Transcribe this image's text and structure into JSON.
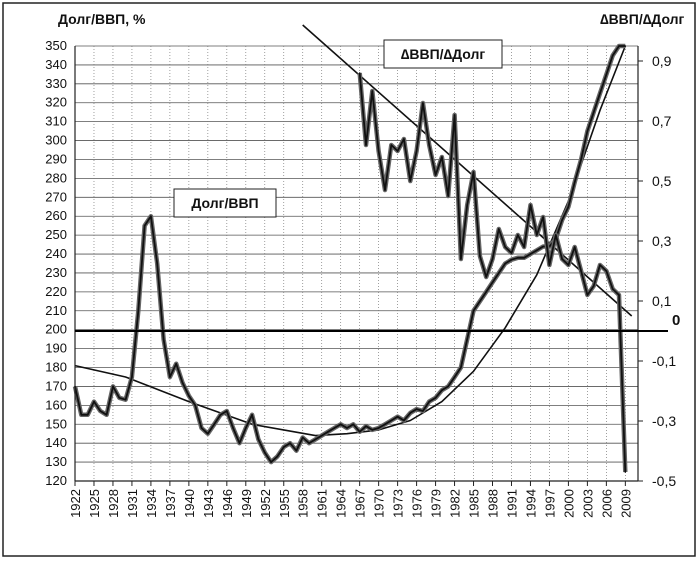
{
  "chart_data": {
    "type": "line",
    "left_axis_title": "Долг/ВВП, %",
    "right_axis_title": "∆ВВП/∆Долг",
    "left_ylim": [
      120,
      350
    ],
    "left_yticks": [
      120,
      130,
      140,
      150,
      160,
      170,
      180,
      190,
      200,
      210,
      220,
      230,
      240,
      250,
      260,
      270,
      280,
      290,
      300,
      310,
      320,
      330,
      340,
      350
    ],
    "right_ylim": [
      -0.5,
      0.95
    ],
    "right_yticks": [
      "0,9",
      "0,7",
      "0,5",
      "0,3",
      "0,1",
      "-0,1",
      "-0,3",
      "-0,5"
    ],
    "right_ytick_values": [
      0.9,
      0.7,
      0.5,
      0.3,
      0.1,
      -0.1,
      -0.3,
      -0.5
    ],
    "xlim": [
      1922,
      2011
    ],
    "xticks": [
      1922,
      1925,
      1928,
      1931,
      1934,
      1937,
      1940,
      1943,
      1946,
      1949,
      1952,
      1955,
      1958,
      1961,
      1964,
      1967,
      1970,
      1973,
      1976,
      1979,
      1982,
      1985,
      1988,
      1991,
      1994,
      1997,
      2000,
      2003,
      2006,
      2009
    ],
    "zero_line_label": "0",
    "grid": true,
    "annotations": [
      {
        "text": "Долг/ВВП",
        "series": "debt_gdp"
      },
      {
        "text": "∆ВВП/∆Долг",
        "series": "gdp_debt_ratio"
      }
    ],
    "series": [
      {
        "id": "debt_gdp",
        "axis": "left",
        "x": [
          1922,
          1923,
          1924,
          1925,
          1926,
          1927,
          1928,
          1929,
          1930,
          1931,
          1932,
          1933,
          1934,
          1935,
          1936,
          1937,
          1938,
          1939,
          1940,
          1941,
          1942,
          1943,
          1944,
          1945,
          1946,
          1947,
          1948,
          1949,
          1950,
          1951,
          1952,
          1953,
          1954,
          1955,
          1956,
          1957,
          1958,
          1959,
          1960,
          1961,
          1962,
          1963,
          1964,
          1965,
          1966,
          1967,
          1968,
          1969,
          1970,
          1971,
          1972,
          1973,
          1974,
          1975,
          1976,
          1977,
          1978,
          1979,
          1980,
          1981,
          1982,
          1983,
          1984,
          1985,
          1986,
          1987,
          1988,
          1989,
          1990,
          1991,
          1992,
          1993,
          1994,
          1995,
          1996,
          1997,
          1998,
          1999,
          2000,
          2001,
          2002,
          2003,
          2004,
          2005,
          2006,
          2007,
          2008,
          2009
        ],
        "values": [
          170,
          155,
          155,
          162,
          157,
          155,
          170,
          164,
          163,
          175,
          210,
          255,
          260,
          235,
          195,
          175,
          182,
          172,
          165,
          160,
          148,
          145,
          150,
          155,
          157,
          148,
          140,
          148,
          155,
          142,
          135,
          130,
          133,
          138,
          140,
          136,
          143,
          140,
          142,
          144,
          146,
          148,
          150,
          148,
          150,
          146,
          149,
          147,
          148,
          150,
          152,
          154,
          152,
          156,
          158,
          157,
          162,
          164,
          168,
          170,
          175,
          180,
          195,
          210,
          215,
          220,
          225,
          230,
          235,
          237,
          238,
          238,
          240,
          242,
          244,
          244,
          248,
          258,
          265,
          278,
          290,
          305,
          315,
          325,
          335,
          345,
          350,
          350
        ]
      },
      {
        "id": "gdp_debt_ratio",
        "axis": "right",
        "x": [
          1967,
          1968,
          1969,
          1970,
          1971,
          1972,
          1973,
          1974,
          1975,
          1976,
          1977,
          1978,
          1979,
          1980,
          1981,
          1982,
          1983,
          1984,
          1985,
          1986,
          1987,
          1988,
          1989,
          1990,
          1991,
          1992,
          1993,
          1994,
          1995,
          1996,
          1997,
          1998,
          1999,
          2000,
          2001,
          2002,
          2003,
          2004,
          2005,
          2006,
          2007,
          2008,
          2009
        ],
        "values": [
          0.86,
          0.62,
          0.8,
          0.6,
          0.47,
          0.62,
          0.6,
          0.64,
          0.5,
          0.6,
          0.76,
          0.62,
          0.52,
          0.58,
          0.45,
          0.72,
          0.24,
          0.42,
          0.53,
          0.25,
          0.18,
          0.24,
          0.34,
          0.28,
          0.26,
          0.32,
          0.28,
          0.42,
          0.32,
          0.38,
          0.22,
          0.32,
          0.24,
          0.22,
          0.28,
          0.2,
          0.12,
          0.15,
          0.22,
          0.2,
          0.14,
          0.12,
          -0.47
        ]
      },
      {
        "id": "debt_gdp_trend",
        "axis": "left",
        "x": [
          1922,
          1930,
          1940,
          1950,
          1960,
          1965,
          1970,
          1975,
          1980,
          1985,
          1990,
          1995,
          2000,
          2005,
          2009
        ],
        "values": [
          181,
          175,
          162,
          150,
          144,
          145,
          147,
          152,
          162,
          178,
          201,
          229,
          268,
          316,
          350
        ]
      },
      {
        "id": "ratio_trend",
        "axis": "right",
        "x": [
          1958,
          2010
        ],
        "values": [
          1.02,
          0.05
        ]
      }
    ]
  }
}
